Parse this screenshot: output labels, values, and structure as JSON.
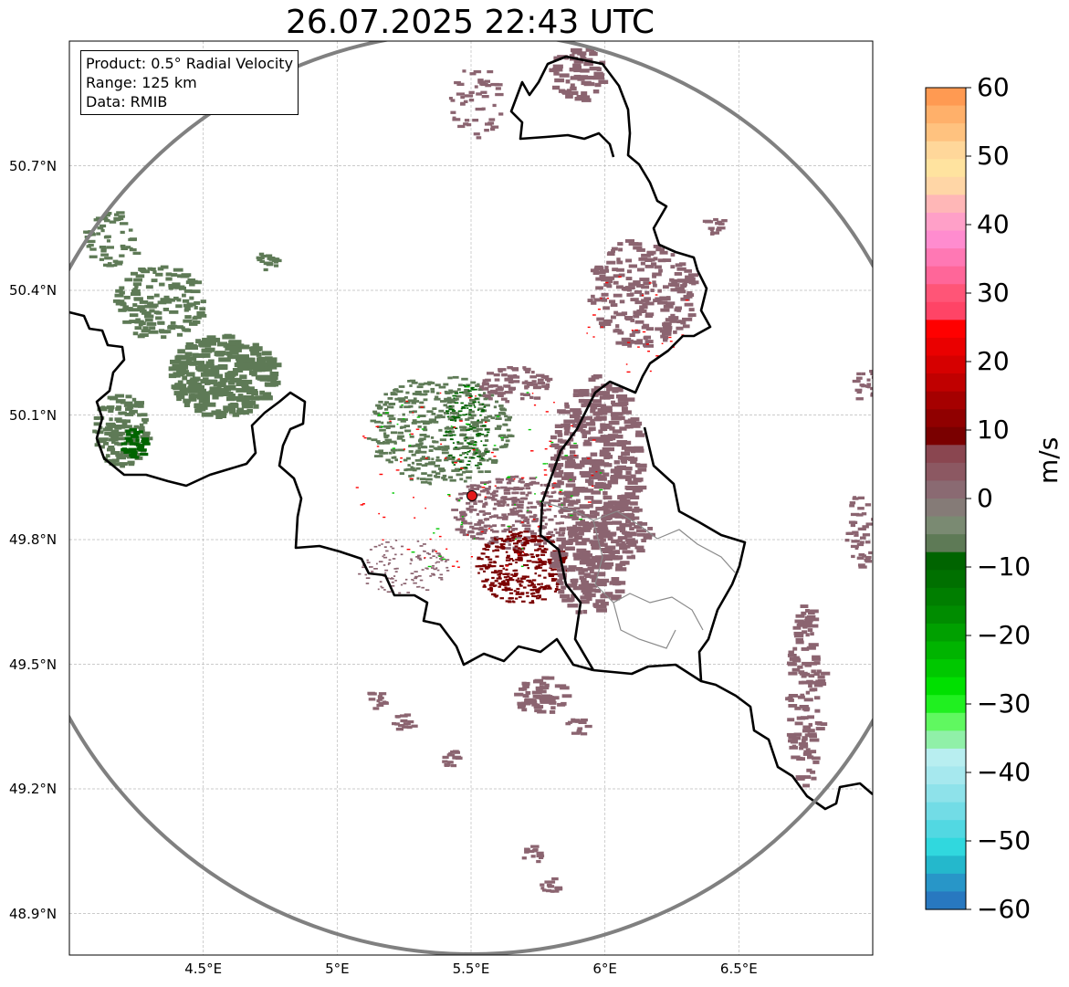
{
  "title": "26.07.2025 22:43 UTC",
  "info": {
    "product": "Product: 0.5° Radial Velocity",
    "range": "Range: 125 km",
    "data": "Data: RMIB"
  },
  "map": {
    "lat_labels": [
      "50.7°N",
      "50.4°N",
      "50.1°N",
      "49.8°N",
      "49.5°N",
      "49.2°N",
      "48.9°N"
    ],
    "lat_values": [
      50.7,
      50.4,
      50.1,
      49.8,
      49.5,
      49.2,
      48.9
    ],
    "lon_labels": [
      "4.5°E",
      "5°E",
      "5.5°E",
      "6°E",
      "6.5°E"
    ],
    "lon_values": [
      4.5,
      5.0,
      5.5,
      6.0,
      6.5
    ],
    "lon_range": [
      4.0,
      7.0
    ],
    "lat_range": [
      48.8,
      51.0
    ],
    "radar_site": {
      "lon": 5.505,
      "lat": 49.915
    },
    "range_ring_color": "#808080",
    "border_color": "#000000"
  },
  "colorbar": {
    "unit": "m/s",
    "ticks": [
      "60",
      "50",
      "40",
      "30",
      "20",
      "10",
      "0",
      "−10",
      "−20",
      "−30",
      "−40",
      "−50",
      "−60"
    ],
    "min": -60,
    "max": 60,
    "colors_top_to_bottom": [
      "#ff9a52",
      "#ffb06a",
      "#ffc27f",
      "#ffd79a",
      "#ffe39f",
      "#ffd6a6",
      "#ffb7b7",
      "#ffa0c8",
      "#ff8ccf",
      "#ff78b4",
      "#ff6699",
      "#ff5577",
      "#ff4466",
      "#ff0000",
      "#ea0000",
      "#d60000",
      "#c00000",
      "#a50000",
      "#900000",
      "#7a0000",
      "#8a4650",
      "#8c5862",
      "#8a6a72",
      "#857b77",
      "#7a8a72",
      "#5e7a56",
      "#006400",
      "#007000",
      "#007e00",
      "#008c00",
      "#00a000",
      "#00b400",
      "#00c800",
      "#00e000",
      "#20f020",
      "#60f860",
      "#90f0a8",
      "#b8eef0",
      "#a6e8ee",
      "#8ee2ea",
      "#72dce6",
      "#52d8e2",
      "#30d8de",
      "#24b8cc",
      "#2896c8",
      "#2878c0"
    ]
  },
  "echo_colors": {
    "receding": "#8b6470",
    "approaching": "#5e7a56",
    "strong_out": "#7a0000",
    "strong_in": "#006400",
    "red": "#ff0000",
    "green": "#00c800"
  }
}
